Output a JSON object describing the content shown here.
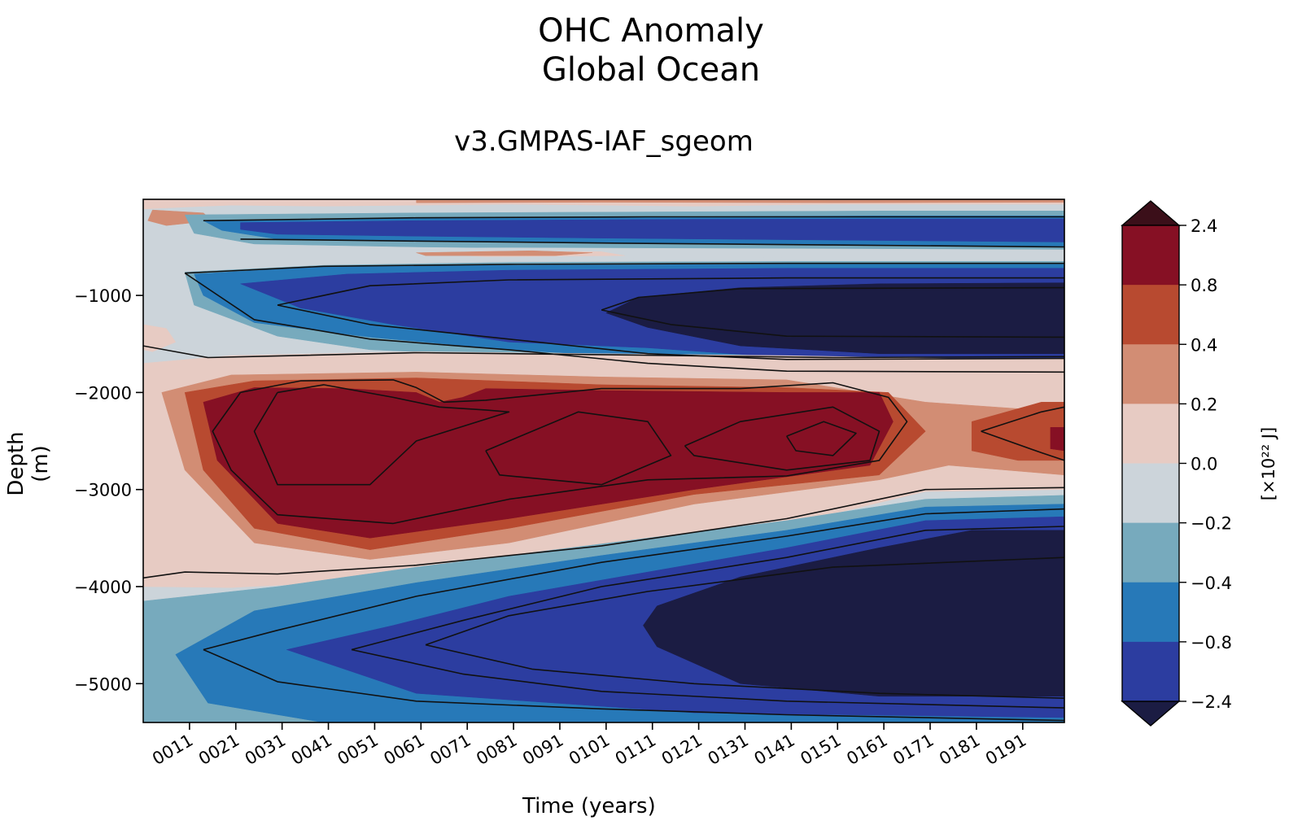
{
  "chart_data": {
    "type": "heatmap",
    "title": [
      "OHC Anomaly",
      "Global Ocean"
    ],
    "subtitle": "v3.GMPAS-IAF_sgeom",
    "xlabel": "Time (years)",
    "ylabel": "Depth (m)",
    "xlim": [
      1,
      200
    ],
    "ylim": [
      -5400,
      -10
    ],
    "x_ticks": [
      11,
      21,
      31,
      41,
      51,
      61,
      71,
      81,
      91,
      101,
      111,
      121,
      131,
      141,
      151,
      161,
      171,
      181,
      191
    ],
    "x_tick_labels": [
      "0011",
      "0021",
      "0031",
      "0041",
      "0051",
      "0061",
      "0071",
      "0081",
      "0091",
      "0101",
      "0111",
      "0121",
      "0131",
      "0141",
      "0151",
      "0161",
      "0171",
      "0181",
      "0191"
    ],
    "y_ticks": [
      -1000,
      -2000,
      -3000,
      -4000,
      -5000
    ],
    "y_tick_labels": [
      "−1000",
      "−2000",
      "−3000",
      "−4000",
      "−5000"
    ],
    "colorbar": {
      "label": "[×10²² J]",
      "ticks": [
        "2.4",
        "0.8",
        "0.4",
        "0.2",
        "0.0",
        "−0.2",
        "−0.4",
        "−0.8",
        "−2.4"
      ],
      "levels": [
        2.4,
        0.8,
        0.4,
        0.2,
        0.0,
        -0.2,
        -0.4,
        -0.8,
        -2.4
      ],
      "colors": [
        "#861024",
        "#b84a30",
        "#d28d74",
        "#e7cbc3",
        "#ccd4da",
        "#77aabd",
        "#2779b8",
        "#2c3da0"
      ],
      "extend_max_color": "#3b0f19",
      "extend_min_color": "#1b1c43"
    },
    "features": [
      {
        "name": "deep warm anomaly (max)",
        "x_range": [
          11,
          161
        ],
        "depth_range": [
          -3400,
          -2000
        ],
        "value_class": ">0.8"
      },
      {
        "name": "abyssal cold anomaly",
        "x_range": [
          111,
          200
        ],
        "depth_range": [
          -5100,
          -3500
        ],
        "value_class": "<-2.4"
      },
      {
        "name": "intermediate cold anomaly",
        "x_range": [
          101,
          200
        ],
        "depth_range": [
          -1600,
          -850
        ],
        "value_class": "<-2.4"
      }
    ]
  }
}
